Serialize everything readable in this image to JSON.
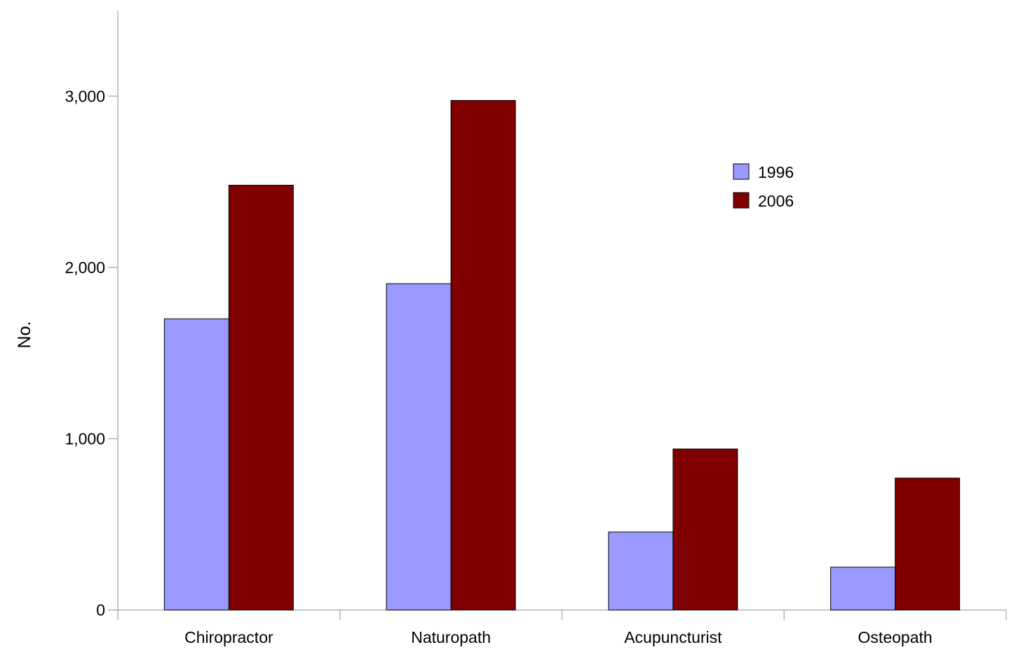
{
  "chart_data": {
    "type": "bar",
    "categories": [
      "Chiropractor",
      "Naturopath",
      "Acupuncturist",
      "Osteopath"
    ],
    "series": [
      {
        "name": "1996",
        "values": [
          1700,
          1905,
          455,
          250
        ],
        "color": "#9999ff"
      },
      {
        "name": "2006",
        "values": [
          2480,
          2975,
          940,
          770
        ],
        "color": "#800000"
      }
    ],
    "ylabel": "No.",
    "ylim": [
      0,
      3500
    ],
    "yticks": [
      0,
      1000,
      2000,
      3000
    ],
    "ytick_labels": [
      "0",
      "1,000",
      "2,000",
      "3,000"
    ],
    "grid": false,
    "legend_position": "top-right"
  }
}
